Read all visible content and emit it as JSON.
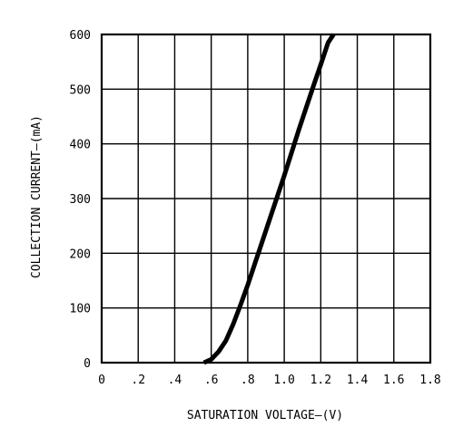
{
  "chart_data": {
    "type": "line",
    "title": "",
    "xlabel": "SATURATION VOLTAGE–(V)",
    "ylabel": "COLLECTION CURRENT–(mA)",
    "xlim": [
      0,
      1.8
    ],
    "ylim": [
      0,
      600
    ],
    "x_ticks": [
      0,
      0.2,
      0.4,
      0.6,
      0.8,
      1.0,
      1.2,
      1.4,
      1.6,
      1.8
    ],
    "x_tick_labels": [
      "0",
      ".2",
      ".4",
      ".6",
      ".8",
      "1.0",
      "1.2",
      "1.4",
      "1.6",
      "1.8"
    ],
    "y_ticks": [
      0,
      100,
      200,
      300,
      400,
      500,
      600
    ],
    "y_tick_labels": [
      "0",
      "100",
      "200",
      "300",
      "400",
      "500",
      "600"
    ],
    "grid": true,
    "series": [
      {
        "x": [
          0.56,
          0.6,
          0.64,
          0.68,
          0.72,
          0.76,
          0.8,
          0.84,
          0.88,
          0.92,
          0.96,
          1.0,
          1.04,
          1.08,
          1.12,
          1.16,
          1.2,
          1.24,
          1.27
        ],
        "y": [
          0,
          6,
          20,
          40,
          70,
          105,
          142,
          182,
          222,
          262,
          302,
          342,
          384,
          426,
          466,
          506,
          545,
          585,
          600
        ]
      }
    ]
  }
}
